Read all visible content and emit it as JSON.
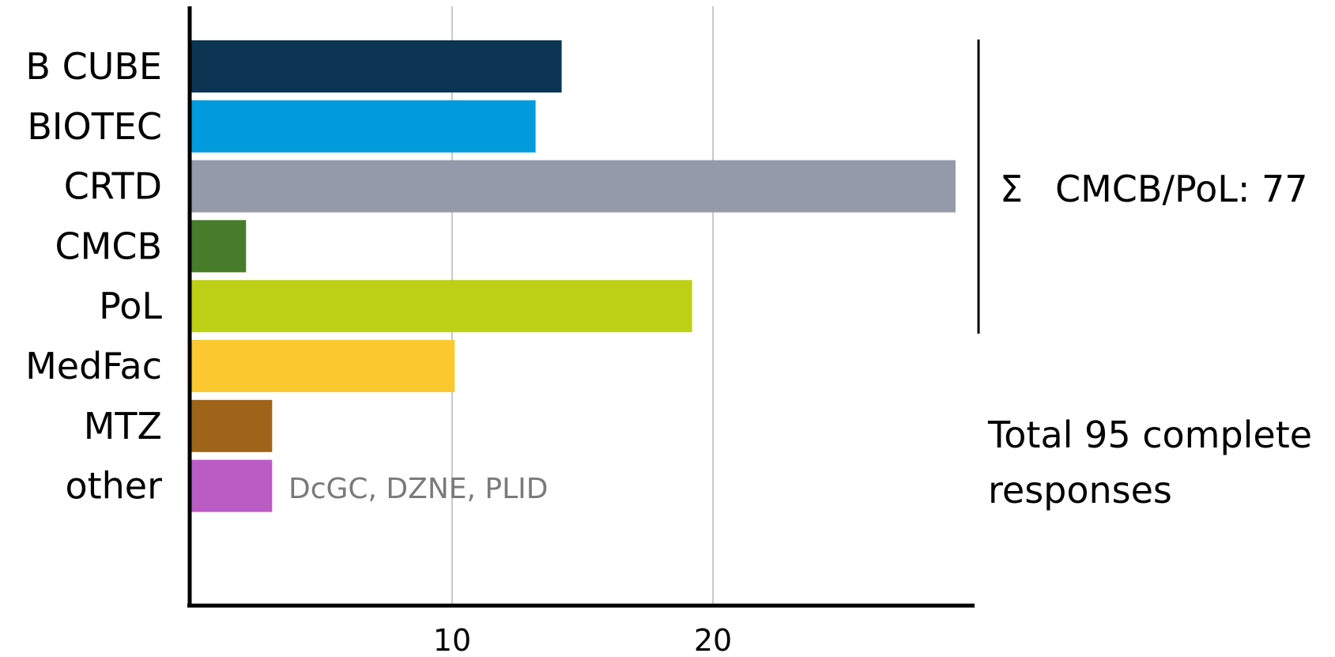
{
  "chart_data": {
    "type": "bar",
    "orientation": "horizontal",
    "categories": [
      "B CUBE",
      "BIOTEC",
      "CRTD",
      "CMCB",
      "PoL",
      "MedFac",
      "MTZ",
      "other"
    ],
    "values": [
      14.2,
      13.2,
      29.3,
      2.1,
      19.2,
      10.1,
      3.1,
      3.1
    ],
    "colors": [
      "#0b3552",
      "#009bdc",
      "#949aaa",
      "#477c2a",
      "#bdd016",
      "#fbc82f",
      "#9f6419",
      "#bb5cc5"
    ],
    "xlim": [
      0,
      30
    ],
    "xticks": [
      10,
      20
    ],
    "grid": true,
    "bar_annotations": [
      {
        "category": "other",
        "text": "DcGC, DZNE, PLID"
      }
    ],
    "group_annotation": {
      "categories": [
        "B CUBE",
        "BIOTEC",
        "CRTD",
        "CMCB",
        "PoL"
      ],
      "symbol": "Σ",
      "label": "CMCB/PoL: 77"
    },
    "side_note": "Total 95 complete responses"
  }
}
